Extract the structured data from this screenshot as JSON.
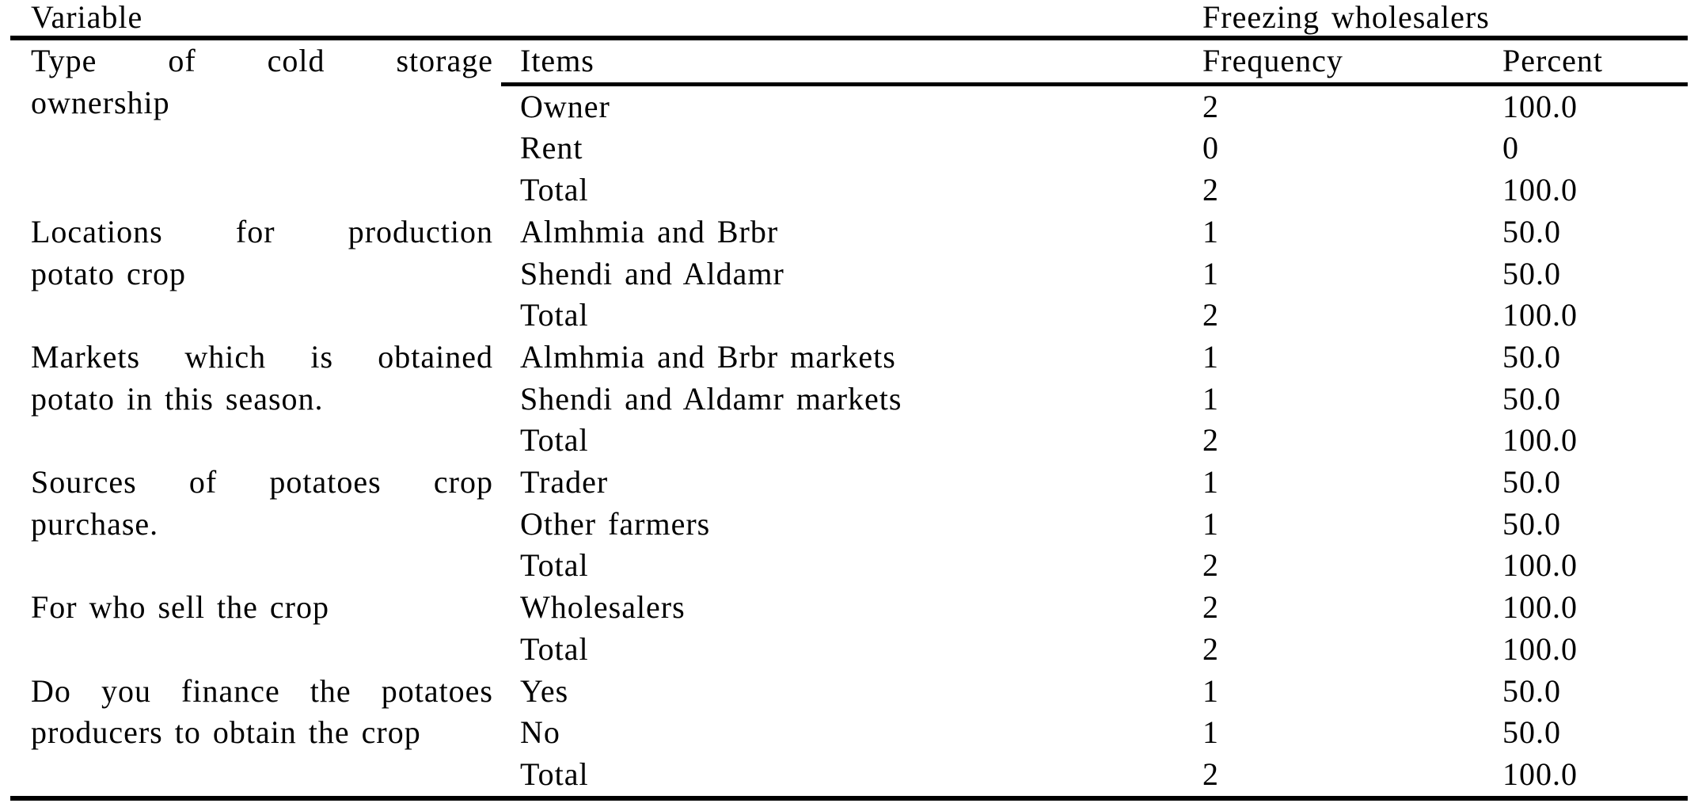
{
  "table": {
    "header": {
      "variable": "Variable",
      "group": "Freezing wholesalers",
      "items": "Items",
      "frequency": "Frequency",
      "percent": "Percent"
    },
    "groups": [
      {
        "variable_lines": [
          "Type of cold storage",
          "ownership"
        ],
        "rows": [
          {
            "item": "Owner",
            "frequency": "2",
            "percent": "100.0"
          },
          {
            "item": "Rent",
            "frequency": "0",
            "percent": "0"
          },
          {
            "item": "Total",
            "frequency": "2",
            "percent": "100.0"
          }
        ]
      },
      {
        "variable_lines": [
          "Locations for production",
          "potato crop"
        ],
        "rows": [
          {
            "item": "Almhmia and Brbr",
            "frequency": "1",
            "percent": "50.0"
          },
          {
            "item": "Shendi and Aldamr",
            "frequency": "1",
            "percent": "50.0"
          },
          {
            "item": "Total",
            "frequency": "2",
            "percent": "100.0"
          }
        ]
      },
      {
        "variable_lines": [
          "Markets which is obtained",
          "potato in this season."
        ],
        "rows": [
          {
            "item": "Almhmia and Brbr markets",
            "frequency": "1",
            "percent": "50.0"
          },
          {
            "item": "Shendi and Aldamr markets",
            "frequency": "1",
            "percent": "50.0"
          },
          {
            "item": "Total",
            "frequency": "2",
            "percent": "100.0"
          }
        ]
      },
      {
        "variable_lines": [
          "Sources of potatoes crop",
          "purchase."
        ],
        "rows": [
          {
            "item": "Trader",
            "frequency": "1",
            "percent": "50.0"
          },
          {
            "item": "Other farmers",
            "frequency": "1",
            "percent": "50.0"
          },
          {
            "item": "Total",
            "frequency": "2",
            "percent": "100.0"
          }
        ]
      },
      {
        "variable_lines": [
          "For who sell the crop"
        ],
        "rows": [
          {
            "item": "Wholesalers",
            "frequency": "2",
            "percent": "100.0"
          },
          {
            "item": "Total",
            "frequency": "2",
            "percent": "100.0"
          }
        ]
      },
      {
        "variable_lines": [
          "Do you finance the potatoes",
          "producers to obtain the crop"
        ],
        "rows": [
          {
            "item": "Yes",
            "frequency": "1",
            "percent": "50.0"
          },
          {
            "item": "No",
            "frequency": "1",
            "percent": "50.0"
          },
          {
            "item": "Total",
            "frequency": "2",
            "percent": "100.0"
          }
        ]
      }
    ]
  }
}
